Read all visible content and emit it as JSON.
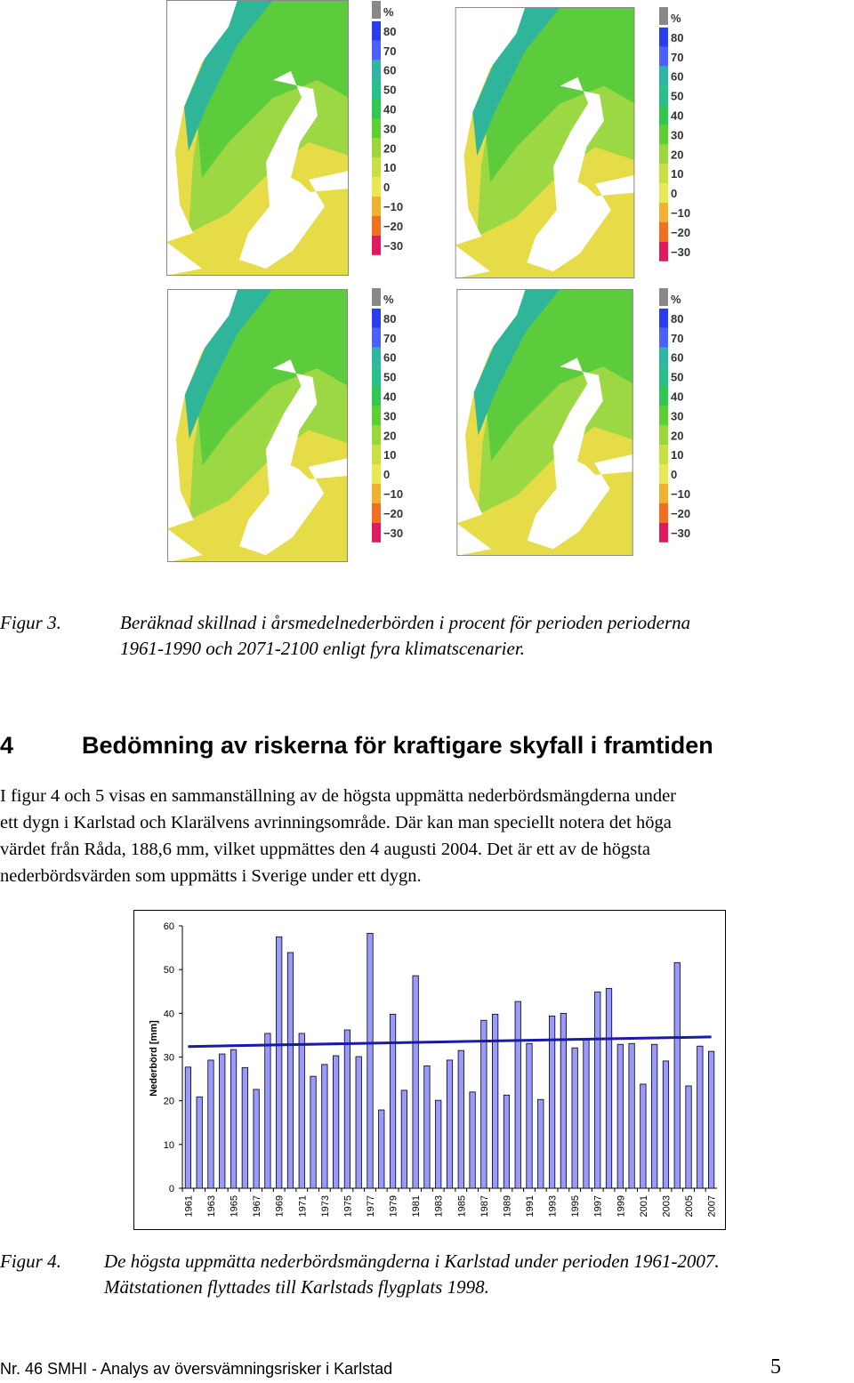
{
  "maps": {
    "legend": [
      "%",
      "80",
      "70",
      "60",
      "50",
      "40",
      "30",
      "20",
      "10",
      "0",
      "−10",
      "−20",
      "−30"
    ]
  },
  "figure3": {
    "label": "Figur 3.",
    "lines": [
      "Beräknad skillnad i årsmedelnederbörden i procent för perioden perioderna",
      "1961-1990 och 2071-2100 enligt fyra klimatscenarier."
    ]
  },
  "section": {
    "number": "4",
    "title": "Bedömning av riskerna för kraftigare skyfall i framtiden"
  },
  "paragraph": {
    "lines": [
      "I figur 4 och 5 visas en sammanställning av de högsta uppmätta nederbördsmängderna under",
      "ett dygn i Karlstad och Klarälvens avrinningsområde. Där kan man speciellt notera det höga",
      "värdet från Råda, 188,6 mm, vilket uppmättes den 4 augusti 2004. Det är ett av de högsta",
      "nederbördsvärden som uppmätts i Sverige under ett dygn."
    ]
  },
  "chart_data": {
    "type": "bar",
    "ylabel": "Nederbörd [mm]",
    "categories": [
      "1961",
      null,
      "1963",
      null,
      "1965",
      null,
      "1967",
      null,
      "1969",
      null,
      "1971",
      null,
      "1973",
      null,
      "1975",
      null,
      "1977",
      null,
      "1979",
      null,
      "1981",
      null,
      "1983",
      null,
      "1985",
      null,
      "1987",
      null,
      "1989",
      null,
      "1991",
      null,
      "1993",
      null,
      "1995",
      null,
      "1997",
      null,
      "1999",
      null,
      "2001",
      null,
      "2003",
      null,
      "2005",
      null,
      "2007"
    ],
    "values": [
      27.7,
      20.9,
      29.3,
      30.7,
      31.7,
      27.6,
      22.6,
      35.4,
      57.5,
      53.9,
      35.4,
      25.6,
      28.3,
      30.3,
      36.2,
      30.1,
      58.3,
      17.9,
      39.8,
      22.4,
      48.6,
      28.0,
      20.1,
      29.3,
      31.5,
      22.0,
      38.4,
      39.8,
      21.3,
      42.7,
      33.1,
      20.3,
      39.4,
      40.0,
      32.1,
      33.9,
      44.9,
      45.7,
      32.9,
      33.1,
      23.8,
      32.9,
      29.1,
      51.6,
      23.4,
      32.5,
      31.3
    ],
    "color": "#9999ff",
    "trend": {
      "start": 32.4,
      "end": 34.6,
      "color": "#1a1aa8"
    },
    "ylim": [
      0,
      60
    ],
    "yticks": [
      0,
      10,
      20,
      30,
      40,
      50,
      60
    ],
    "grid": false
  },
  "figure4": {
    "label": "Figur 4.",
    "lines": [
      "De högsta uppmätta nederbördsmängderna i Karlstad under perioden 1961-2007.",
      "Mätstationen flyttades till Karlstads flygplats 1998."
    ]
  },
  "footer": {
    "text": "Nr. 46 SMHI - Analys av översvämningsrisker i Karlstad",
    "page": "5"
  }
}
